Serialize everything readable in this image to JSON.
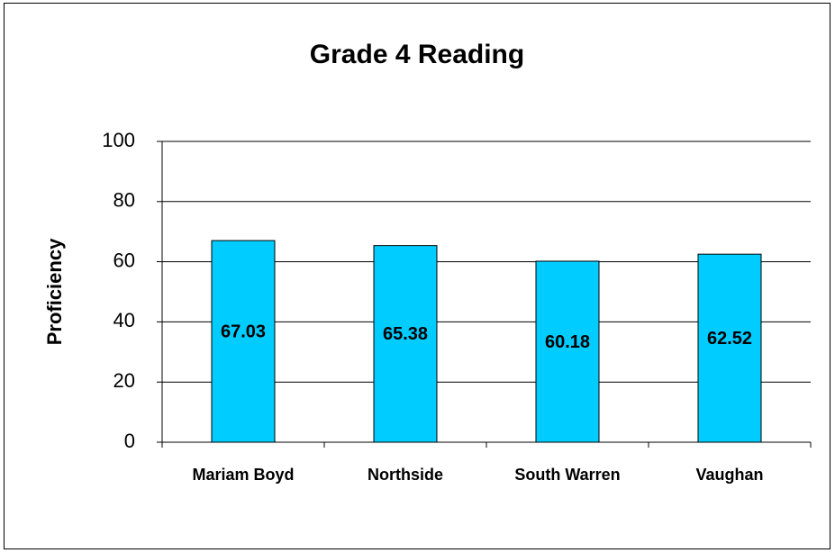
{
  "chart_data": {
    "type": "bar",
    "title": "Grade 4 Reading",
    "y_label": "Proficiency",
    "categories": [
      "Mariam Boyd",
      "Northside",
      "South Warren",
      "Vaughan"
    ],
    "values": [
      67.03,
      65.38,
      60.18,
      62.52
    ],
    "color": "#00ccff",
    "ylim": [
      0,
      100
    ],
    "yticks": [
      0,
      20,
      40,
      60,
      80,
      100
    ],
    "grid": true
  }
}
